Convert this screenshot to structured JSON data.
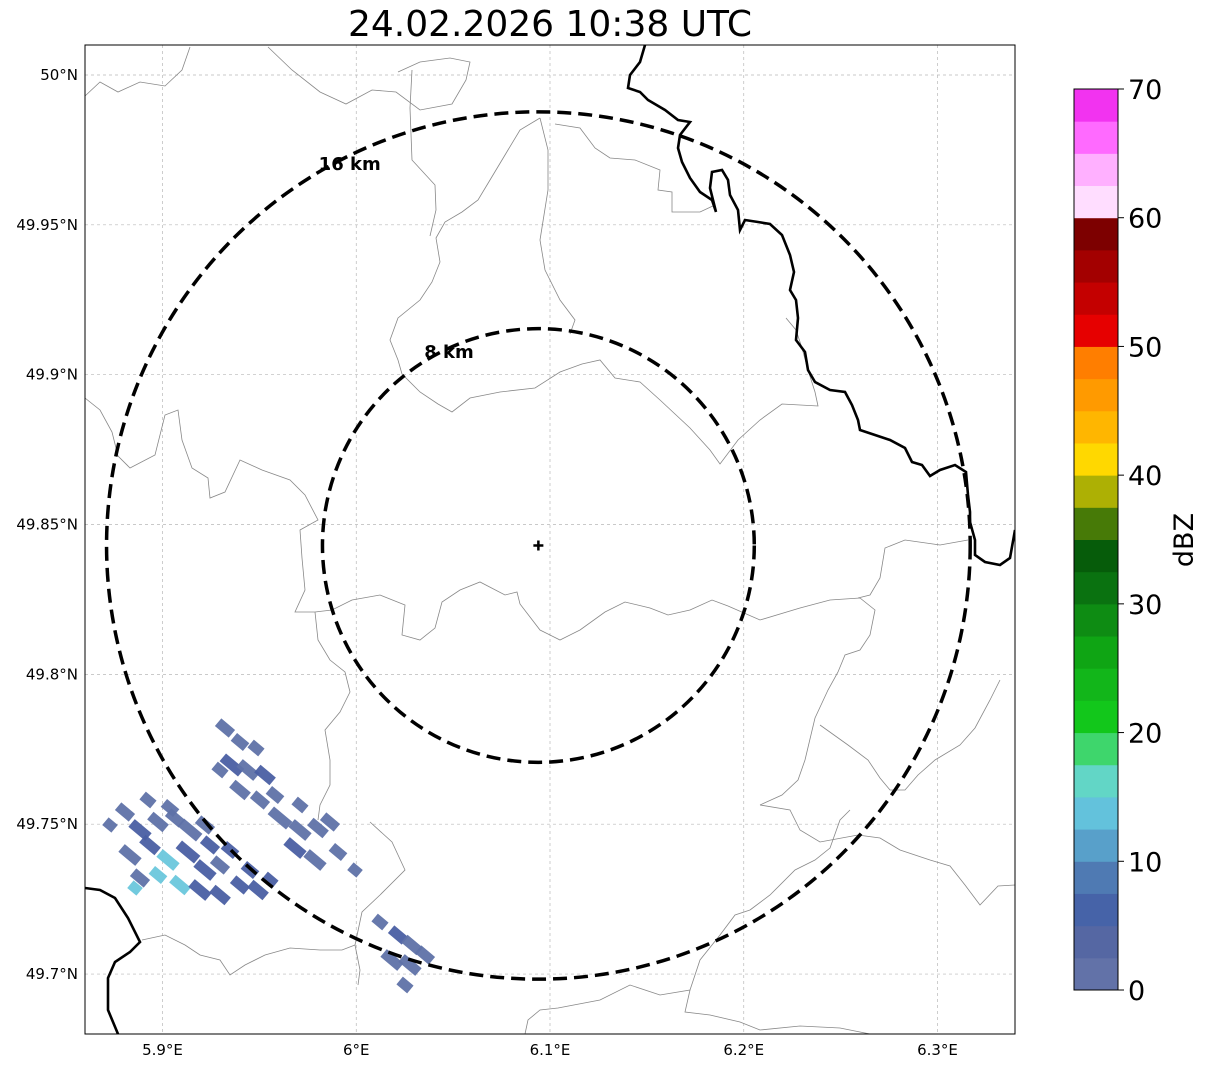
{
  "title": "24.02.2026 10:38 UTC",
  "map": {
    "lon_range": [
      5.86,
      6.34
    ],
    "lat_range": [
      49.68,
      50.01
    ],
    "lon_ticks": [
      {
        "value": 5.9,
        "label": "5.9°E"
      },
      {
        "value": 6.0,
        "label": "6°E"
      },
      {
        "value": 6.1,
        "label": "6.1°E"
      },
      {
        "value": 6.2,
        "label": "6.2°E"
      },
      {
        "value": 6.3,
        "label": "6.3°E"
      }
    ],
    "lat_ticks": [
      {
        "value": 50.0,
        "label": "50°N"
      },
      {
        "value": 49.95,
        "label": "49.95°N"
      },
      {
        "value": 49.9,
        "label": "49.9°N"
      },
      {
        "value": 49.85,
        "label": "49.85°N"
      },
      {
        "value": 49.8,
        "label": "49.8°N"
      },
      {
        "value": 49.75,
        "label": "49.75°N"
      },
      {
        "value": 49.7,
        "label": "49.7°N"
      }
    ],
    "radar_site": {
      "lon": 6.094,
      "lat": 49.843
    },
    "range_rings": [
      {
        "label": "8 km",
        "radius_km": 8
      },
      {
        "label": "16 km",
        "radius_km": 16
      }
    ],
    "grid": true
  },
  "colorbar": {
    "label": "dBZ",
    "min": 0,
    "max": 70,
    "ticks": [
      0,
      10,
      20,
      30,
      40,
      50,
      60,
      70
    ],
    "colors": [
      "#6272a8",
      "#5567a3",
      "#4663a8",
      "#4f7ab3",
      "#58a0ca",
      "#63c2dc",
      "#62d6c6",
      "#3ed66c",
      "#12c71b",
      "#12b61a",
      "#0fa514",
      "#0e8c13",
      "#0a7210",
      "#065c0a",
      "#477a07",
      "#adb004",
      "#ffd800",
      "#ffb600",
      "#ff9a00",
      "#ff7e00",
      "#e60000",
      "#c40000",
      "#a30000",
      "#7d0000",
      "#ffddff",
      "#ffb0ff",
      "#ff6aff",
      "#f233f0"
    ]
  },
  "echoes": {
    "color_low": "#5f72a8",
    "color_mid": "#4a5fa3",
    "color_high": "#6ac7dc"
  }
}
